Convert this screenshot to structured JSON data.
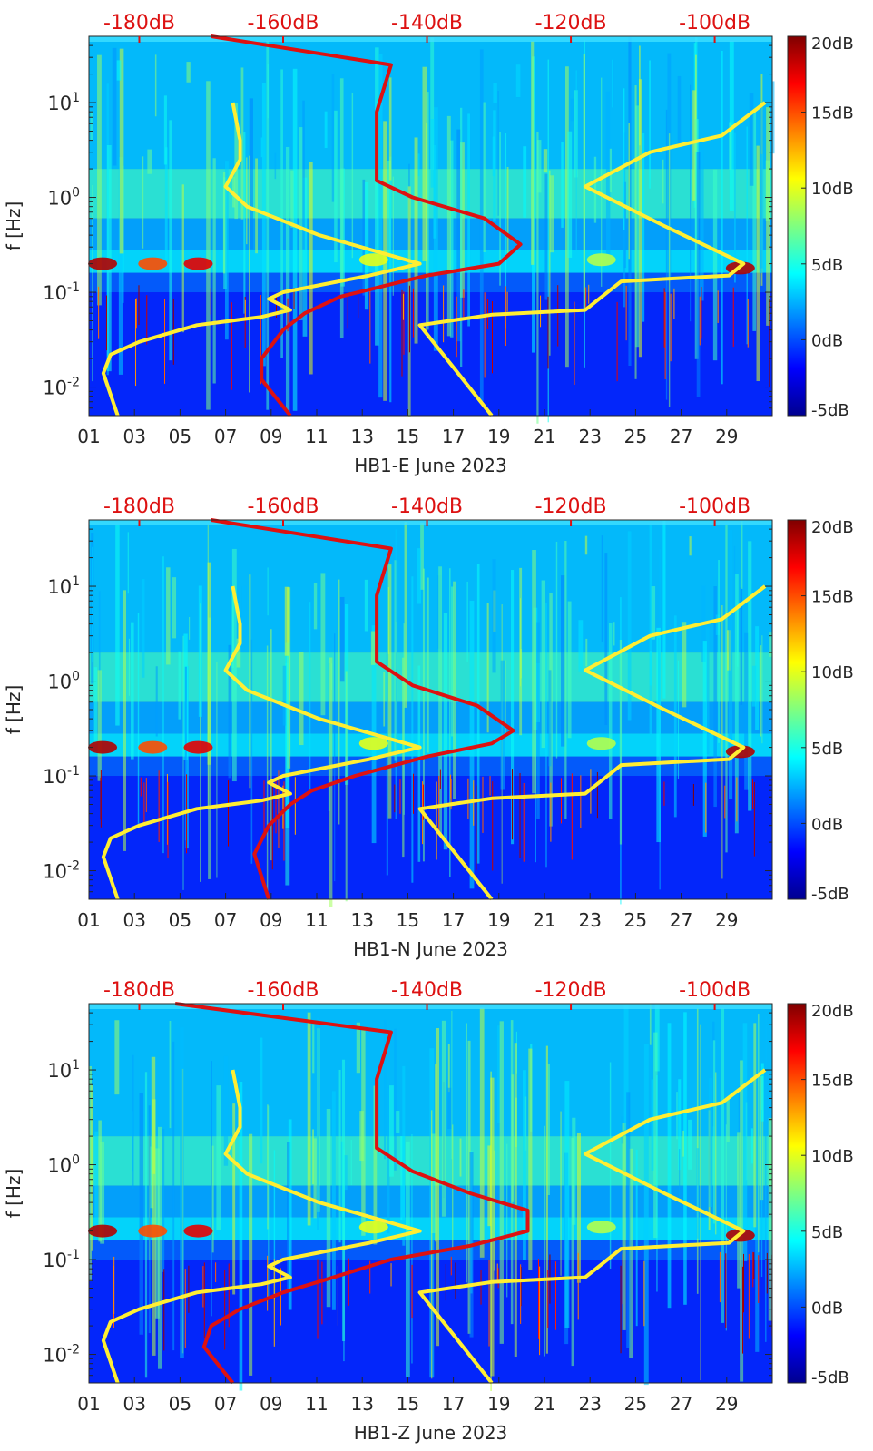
{
  "chart_data": [
    {
      "type": "heatmap",
      "title": "",
      "xlabel": "HB1-E June 2023",
      "ylabel": "f [Hz]",
      "x_ticks": [
        "01",
        "03",
        "05",
        "07",
        "09",
        "11",
        "13",
        "15",
        "17",
        "19",
        "21",
        "23",
        "25",
        "27",
        "29"
      ],
      "x_range_days": [
        1,
        31
      ],
      "y_scale": "log",
      "y_ticks": [
        {
          "label": "10",
          "exp": "-2",
          "value": 0.01
        },
        {
          "label": "10",
          "exp": "-1",
          "value": 0.1
        },
        {
          "label": "10",
          "exp": "0",
          "value": 1
        },
        {
          "label": "10",
          "exp": "1",
          "value": 10
        }
      ],
      "y_range_hz": [
        0.005,
        50
      ],
      "top_axis_ticks": [
        "-180dB",
        "-160dB",
        "-140dB",
        "-120dB",
        "-100dB"
      ],
      "top_axis_range_db": [
        -187,
        -92
      ],
      "colorbar": {
        "ticks": [
          "20dB",
          "15dB",
          "10dB",
          "5dB",
          "0dB",
          "-5dB"
        ],
        "range_db": [
          -5,
          20
        ],
        "colormap": "jet"
      },
      "series": [
        {
          "color": "#ffee33",
          "points_db_hz": [
            [
              -183,
              0.005
            ],
            [
              -185,
              0.014
            ],
            [
              -184,
              0.022
            ],
            [
              -180,
              0.03
            ],
            [
              -172,
              0.045
            ],
            [
              -163,
              0.055
            ],
            [
              -159,
              0.065
            ],
            [
              -162,
              0.085
            ],
            [
              -160,
              0.1
            ],
            [
              -148,
              0.15
            ],
            [
              -141,
              0.2
            ],
            [
              -155,
              0.4
            ],
            [
              -165,
              0.8
            ],
            [
              -168,
              1.3
            ],
            [
              -166,
              2.5
            ],
            [
              -166,
              4
            ],
            [
              -167,
              10
            ]
          ]
        },
        {
          "color": "#ffee33",
          "points_db_hz": [
            [
              -131,
              0.005
            ],
            [
              -141,
              0.045
            ],
            [
              -131,
              0.058
            ],
            [
              -118,
              0.065
            ],
            [
              -113,
              0.13
            ],
            [
              -98,
              0.15
            ],
            [
              -96,
              0.2
            ],
            [
              -107,
              0.5
            ],
            [
              -118,
              1.3
            ],
            [
              -109,
              3
            ],
            [
              -99,
              4.5
            ],
            [
              -93,
              10
            ]
          ]
        },
        {
          "color": "#dd1111",
          "points_db_hz": [
            [
              -159,
              0.005
            ],
            [
              -163,
              0.012
            ],
            [
              -163,
              0.02
            ],
            [
              -160,
              0.04
            ],
            [
              -157,
              0.06
            ],
            [
              -152,
              0.09
            ],
            [
              -140,
              0.15
            ],
            [
              -130,
              0.2
            ],
            [
              -127,
              0.32
            ],
            [
              -132,
              0.6
            ],
            [
              -142,
              1.0
            ],
            [
              -147,
              1.5
            ],
            [
              -147,
              3
            ],
            [
              -147,
              8
            ],
            [
              -145,
              25
            ],
            [
              -170,
              50
            ]
          ]
        }
      ]
    },
    {
      "type": "heatmap",
      "title": "",
      "xlabel": "HB1-N June 2023",
      "ylabel": "f [Hz]",
      "x_ticks": [
        "01",
        "03",
        "05",
        "07",
        "09",
        "11",
        "13",
        "15",
        "17",
        "19",
        "21",
        "23",
        "25",
        "27",
        "29"
      ],
      "x_range_days": [
        1,
        31
      ],
      "y_scale": "log",
      "y_ticks": [
        {
          "label": "10",
          "exp": "-2",
          "value": 0.01
        },
        {
          "label": "10",
          "exp": "-1",
          "value": 0.1
        },
        {
          "label": "10",
          "exp": "0",
          "value": 1
        },
        {
          "label": "10",
          "exp": "1",
          "value": 10
        }
      ],
      "y_range_hz": [
        0.005,
        50
      ],
      "top_axis_ticks": [
        "-180dB",
        "-160dB",
        "-140dB",
        "-120dB",
        "-100dB"
      ],
      "top_axis_range_db": [
        -187,
        -92
      ],
      "colorbar": {
        "ticks": [
          "20dB",
          "15dB",
          "10dB",
          "5dB",
          "0dB",
          "-5dB"
        ],
        "range_db": [
          -5,
          20
        ],
        "colormap": "jet"
      },
      "series": [
        {
          "color": "#ffee33",
          "points_db_hz": [
            [
              -183,
              0.005
            ],
            [
              -185,
              0.014
            ],
            [
              -184,
              0.022
            ],
            [
              -180,
              0.03
            ],
            [
              -172,
              0.045
            ],
            [
              -163,
              0.055
            ],
            [
              -159,
              0.065
            ],
            [
              -162,
              0.085
            ],
            [
              -160,
              0.1
            ],
            [
              -148,
              0.15
            ],
            [
              -141,
              0.2
            ],
            [
              -155,
              0.4
            ],
            [
              -165,
              0.8
            ],
            [
              -168,
              1.3
            ],
            [
              -166,
              2.5
            ],
            [
              -166,
              4
            ],
            [
              -167,
              10
            ]
          ]
        },
        {
          "color": "#ffee33",
          "points_db_hz": [
            [
              -131,
              0.005
            ],
            [
              -141,
              0.045
            ],
            [
              -131,
              0.058
            ],
            [
              -118,
              0.065
            ],
            [
              -113,
              0.13
            ],
            [
              -98,
              0.15
            ],
            [
              -96,
              0.2
            ],
            [
              -107,
              0.5
            ],
            [
              -118,
              1.3
            ],
            [
              -109,
              3
            ],
            [
              -99,
              4.5
            ],
            [
              -93,
              10
            ]
          ]
        },
        {
          "color": "#dd1111",
          "points_db_hz": [
            [
              -162,
              0.005
            ],
            [
              -164,
              0.015
            ],
            [
              -162,
              0.03
            ],
            [
              -159,
              0.05
            ],
            [
              -156,
              0.07
            ],
            [
              -150,
              0.1
            ],
            [
              -140,
              0.16
            ],
            [
              -131,
              0.22
            ],
            [
              -128,
              0.3
            ],
            [
              -133,
              0.55
            ],
            [
              -142,
              0.9
            ],
            [
              -147,
              1.6
            ],
            [
              -147,
              3
            ],
            [
              -147,
              8
            ],
            [
              -145,
              25
            ],
            [
              -170,
              50
            ]
          ]
        }
      ]
    },
    {
      "type": "heatmap",
      "title": "",
      "xlabel": "HB1-Z June 2023",
      "ylabel": "f [Hz]",
      "x_ticks": [
        "01",
        "03",
        "05",
        "07",
        "09",
        "11",
        "13",
        "15",
        "17",
        "19",
        "21",
        "23",
        "25",
        "27",
        "29"
      ],
      "x_range_days": [
        1,
        31
      ],
      "y_scale": "log",
      "y_ticks": [
        {
          "label": "10",
          "exp": "-2",
          "value": 0.01
        },
        {
          "label": "10",
          "exp": "-1",
          "value": 0.1
        },
        {
          "label": "10",
          "exp": "0",
          "value": 1
        },
        {
          "label": "10",
          "exp": "1",
          "value": 10
        }
      ],
      "y_range_hz": [
        0.005,
        50
      ],
      "top_axis_ticks": [
        "-180dB",
        "-160dB",
        "-140dB",
        "-120dB",
        "-100dB"
      ],
      "top_axis_range_db": [
        -187,
        -92
      ],
      "colorbar": {
        "ticks": [
          "20dB",
          "15dB",
          "10dB",
          "5dB",
          "0dB",
          "-5dB"
        ],
        "range_db": [
          -5,
          20
        ],
        "colormap": "jet"
      },
      "series": [
        {
          "color": "#ffee33",
          "points_db_hz": [
            [
              -183,
              0.005
            ],
            [
              -185,
              0.014
            ],
            [
              -184,
              0.022
            ],
            [
              -180,
              0.03
            ],
            [
              -172,
              0.045
            ],
            [
              -163,
              0.055
            ],
            [
              -159,
              0.065
            ],
            [
              -162,
              0.085
            ],
            [
              -160,
              0.1
            ],
            [
              -148,
              0.15
            ],
            [
              -141,
              0.2
            ],
            [
              -155,
              0.4
            ],
            [
              -165,
              0.8
            ],
            [
              -168,
              1.3
            ],
            [
              -166,
              2.5
            ],
            [
              -166,
              4
            ],
            [
              -167,
              10
            ]
          ]
        },
        {
          "color": "#ffee33",
          "points_db_hz": [
            [
              -131,
              0.005
            ],
            [
              -141,
              0.045
            ],
            [
              -131,
              0.058
            ],
            [
              -118,
              0.065
            ],
            [
              -113,
              0.13
            ],
            [
              -98,
              0.15
            ],
            [
              -96,
              0.2
            ],
            [
              -107,
              0.5
            ],
            [
              -118,
              1.3
            ],
            [
              -109,
              3
            ],
            [
              -99,
              4.5
            ],
            [
              -93,
              10
            ]
          ]
        },
        {
          "color": "#dd1111",
          "points_db_hz": [
            [
              -167,
              0.005
            ],
            [
              -171,
              0.012
            ],
            [
              -170,
              0.02
            ],
            [
              -166,
              0.03
            ],
            [
              -160,
              0.045
            ],
            [
              -153,
              0.065
            ],
            [
              -145,
              0.1
            ],
            [
              -134,
              0.14
            ],
            [
              -126,
              0.2
            ],
            [
              -126,
              0.33
            ],
            [
              -134,
              0.5
            ],
            [
              -142,
              0.85
            ],
            [
              -147,
              1.5
            ],
            [
              -147,
              3
            ],
            [
              -147,
              8
            ],
            [
              -145,
              25
            ],
            [
              -175,
              50
            ]
          ]
        }
      ]
    }
  ]
}
